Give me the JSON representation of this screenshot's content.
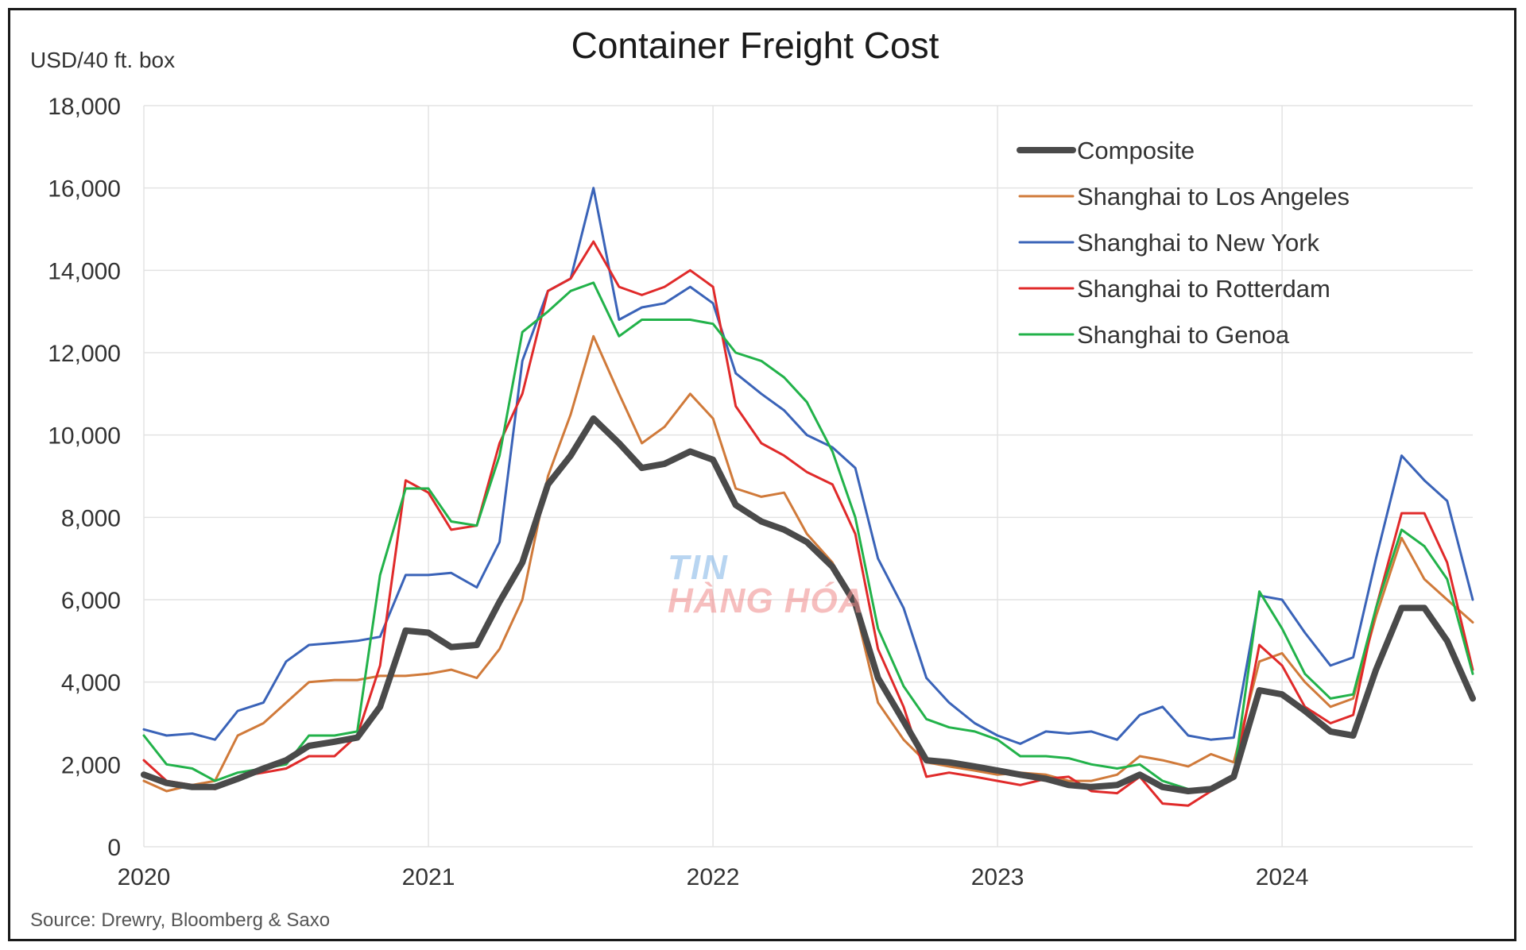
{
  "chart_data": {
    "type": "line",
    "title": "Container Freight Cost",
    "ylabel": "USD/40 ft. box",
    "source": "Source: Drewry, Bloomberg & Saxo",
    "xlabel": "",
    "xlim": [
      2020.0,
      2024.67
    ],
    "ylim": [
      0,
      18000
    ],
    "y_ticks": [
      0,
      2000,
      4000,
      6000,
      8000,
      10000,
      12000,
      14000,
      16000,
      18000
    ],
    "y_tick_labels": [
      "0",
      "2,000",
      "4,000",
      "6,000",
      "8,000",
      "10,000",
      "12,000",
      "14,000",
      "16,000",
      "18,000"
    ],
    "x_ticks": [
      2020,
      2021,
      2022,
      2023,
      2024
    ],
    "x_tick_labels": [
      "2020",
      "2021",
      "2022",
      "2023",
      "2024"
    ],
    "grid": true,
    "legend_position": "top-right",
    "watermark": [
      "TIN",
      "HÀNG HÓA"
    ],
    "series": [
      {
        "name": "Composite",
        "color": "#4a4a4a",
        "x": [
          2020.0,
          2020.08,
          2020.17,
          2020.25,
          2020.33,
          2020.42,
          2020.5,
          2020.58,
          2020.67,
          2020.75,
          2020.83,
          2020.92,
          2021.0,
          2021.08,
          2021.17,
          2021.25,
          2021.33,
          2021.42,
          2021.5,
          2021.58,
          2021.67,
          2021.75,
          2021.83,
          2021.92,
          2022.0,
          2022.08,
          2022.17,
          2022.25,
          2022.33,
          2022.42,
          2022.5,
          2022.58,
          2022.67,
          2022.75,
          2022.83,
          2022.92,
          2023.0,
          2023.08,
          2023.17,
          2023.25,
          2023.33,
          2023.42,
          2023.5,
          2023.58,
          2023.67,
          2023.75,
          2023.83,
          2023.92,
          2024.0,
          2024.08,
          2024.17,
          2024.25,
          2024.33,
          2024.42,
          2024.5,
          2024.58,
          2024.67
        ],
        "values": [
          1750,
          1550,
          1450,
          1450,
          1650,
          1900,
          2100,
          2450,
          2550,
          2650,
          3400,
          5250,
          5200,
          4850,
          4900,
          5950,
          6900,
          8800,
          9500,
          10400,
          9800,
          9200,
          9300,
          9600,
          9400,
          8300,
          7900,
          7700,
          7400,
          6800,
          5900,
          4100,
          3050,
          2100,
          2050,
          1950,
          1850,
          1750,
          1650,
          1500,
          1450,
          1500,
          1750,
          1450,
          1350,
          1400,
          1700,
          3800,
          3700,
          3300,
          2800,
          2700,
          4300,
          5800,
          5800,
          5000,
          3600
        ]
      },
      {
        "name": "Shanghai to Los Angeles",
        "color": "#d07a3a",
        "x": [
          2020.0,
          2020.08,
          2020.17,
          2020.25,
          2020.33,
          2020.42,
          2020.5,
          2020.58,
          2020.67,
          2020.75,
          2020.83,
          2020.92,
          2021.0,
          2021.08,
          2021.17,
          2021.25,
          2021.33,
          2021.42,
          2021.5,
          2021.58,
          2021.67,
          2021.75,
          2021.83,
          2021.92,
          2022.0,
          2022.08,
          2022.17,
          2022.25,
          2022.33,
          2022.42,
          2022.5,
          2022.58,
          2022.67,
          2022.75,
          2022.83,
          2022.92,
          2023.0,
          2023.08,
          2023.17,
          2023.25,
          2023.33,
          2023.42,
          2023.5,
          2023.58,
          2023.67,
          2023.75,
          2023.83,
          2023.92,
          2024.0,
          2024.08,
          2024.17,
          2024.25,
          2024.33,
          2024.42,
          2024.5,
          2024.58,
          2024.67
        ],
        "values": [
          1600,
          1350,
          1500,
          1600,
          2700,
          3000,
          3500,
          4000,
          4050,
          4050,
          4150,
          4150,
          4200,
          4300,
          4100,
          4800,
          6000,
          9000,
          10500,
          12400,
          11000,
          9800,
          10200,
          11000,
          10400,
          8700,
          8500,
          8600,
          7600,
          6900,
          5800,
          3500,
          2600,
          2050,
          1950,
          1850,
          1750,
          1800,
          1750,
          1600,
          1600,
          1750,
          2200,
          2100,
          1950,
          2250,
          2050,
          4500,
          4700,
          4000,
          3400,
          3600,
          5600,
          7500,
          6500,
          6000,
          5450
        ]
      },
      {
        "name": "Shanghai to New York",
        "color": "#3a63b8",
        "x": [
          2020.0,
          2020.08,
          2020.17,
          2020.25,
          2020.33,
          2020.42,
          2020.5,
          2020.58,
          2020.67,
          2020.75,
          2020.83,
          2020.92,
          2021.0,
          2021.08,
          2021.17,
          2021.25,
          2021.33,
          2021.42,
          2021.5,
          2021.58,
          2021.67,
          2021.75,
          2021.83,
          2021.92,
          2022.0,
          2022.08,
          2022.17,
          2022.25,
          2022.33,
          2022.42,
          2022.5,
          2022.58,
          2022.67,
          2022.75,
          2022.83,
          2022.92,
          2023.0,
          2023.08,
          2023.17,
          2023.25,
          2023.33,
          2023.42,
          2023.5,
          2023.58,
          2023.67,
          2023.75,
          2023.83,
          2023.92,
          2024.0,
          2024.08,
          2024.17,
          2024.25,
          2024.33,
          2024.42,
          2024.5,
          2024.58,
          2024.67
        ],
        "values": [
          2850,
          2700,
          2750,
          2600,
          3300,
          3500,
          4500,
          4900,
          4950,
          5000,
          5100,
          6600,
          6600,
          6650,
          6300,
          7400,
          11800,
          13500,
          13800,
          16000,
          12800,
          13100,
          13200,
          13600,
          13200,
          11500,
          11000,
          10600,
          10000,
          9700,
          9200,
          7000,
          5800,
          4100,
          3500,
          3000,
          2700,
          2500,
          2800,
          2750,
          2800,
          2600,
          3200,
          3400,
          2700,
          2600,
          2650,
          6100,
          6000,
          5200,
          4400,
          4600,
          7000,
          9500,
          8900,
          8400,
          6000
        ]
      },
      {
        "name": "Shanghai to Rotterdam",
        "color": "#e02a2a",
        "x": [
          2020.0,
          2020.08,
          2020.17,
          2020.25,
          2020.33,
          2020.42,
          2020.5,
          2020.58,
          2020.67,
          2020.75,
          2020.83,
          2020.92,
          2021.0,
          2021.08,
          2021.17,
          2021.25,
          2021.33,
          2021.42,
          2021.5,
          2021.58,
          2021.67,
          2021.75,
          2021.83,
          2021.92,
          2022.0,
          2022.08,
          2022.17,
          2022.25,
          2022.33,
          2022.42,
          2022.5,
          2022.58,
          2022.67,
          2022.75,
          2022.83,
          2022.92,
          2023.0,
          2023.08,
          2023.17,
          2023.25,
          2023.33,
          2023.42,
          2023.5,
          2023.58,
          2023.67,
          2023.75,
          2023.83,
          2023.92,
          2024.0,
          2024.08,
          2024.17,
          2024.25,
          2024.33,
          2024.42,
          2024.5,
          2024.58,
          2024.67
        ],
        "values": [
          2100,
          1600,
          1500,
          1400,
          1700,
          1800,
          1900,
          2200,
          2200,
          2700,
          4400,
          8900,
          8600,
          7700,
          7800,
          9800,
          11000,
          13500,
          13800,
          14700,
          13600,
          13400,
          13600,
          14000,
          13600,
          10700,
          9800,
          9500,
          9100,
          8800,
          7600,
          4800,
          3400,
          1700,
          1800,
          1700,
          1600,
          1500,
          1650,
          1700,
          1350,
          1300,
          1700,
          1050,
          1000,
          1350,
          1650,
          4900,
          4400,
          3400,
          3000,
          3200,
          5800,
          8100,
          8100,
          6900,
          4300
        ]
      },
      {
        "name": "Shanghai to Genoa",
        "color": "#22b24a",
        "x": [
          2020.0,
          2020.08,
          2020.17,
          2020.25,
          2020.33,
          2020.42,
          2020.5,
          2020.58,
          2020.67,
          2020.75,
          2020.83,
          2020.92,
          2021.0,
          2021.08,
          2021.17,
          2021.25,
          2021.33,
          2021.42,
          2021.5,
          2021.58,
          2021.67,
          2021.75,
          2021.83,
          2021.92,
          2022.0,
          2022.08,
          2022.17,
          2022.25,
          2022.33,
          2022.42,
          2022.5,
          2022.58,
          2022.67,
          2022.75,
          2022.83,
          2022.92,
          2023.0,
          2023.08,
          2023.17,
          2023.25,
          2023.33,
          2023.42,
          2023.5,
          2023.58,
          2023.67,
          2023.75,
          2023.83,
          2023.92,
          2024.0,
          2024.08,
          2024.17,
          2024.25,
          2024.33,
          2024.42,
          2024.5,
          2024.58,
          2024.67
        ],
        "values": [
          2700,
          2000,
          1900,
          1600,
          1800,
          1900,
          2000,
          2700,
          2700,
          2800,
          6600,
          8700,
          8700,
          7900,
          7800,
          9500,
          12500,
          13000,
          13500,
          13700,
          12400,
          12800,
          12800,
          12800,
          12700,
          12000,
          11800,
          11400,
          10800,
          9600,
          8000,
          5300,
          3900,
          3100,
          2900,
          2800,
          2600,
          2200,
          2200,
          2150,
          2000,
          1900,
          2000,
          1600,
          1400,
          1400,
          1700,
          6200,
          5300,
          4200,
          3600,
          3700,
          5800,
          7700,
          7300,
          6500,
          4200
        ]
      }
    ]
  }
}
